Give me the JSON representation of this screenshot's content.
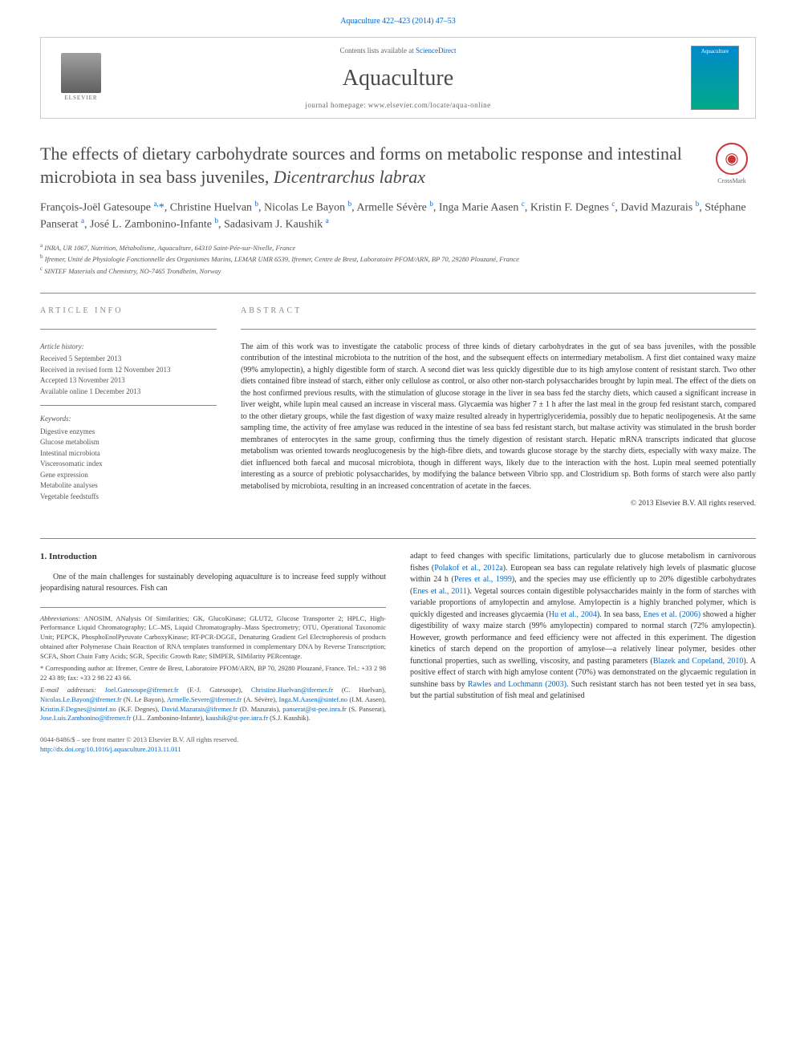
{
  "top_citation": "Aquaculture 422–423 (2014) 47–53",
  "header": {
    "contents_prefix": "Contents lists available at ",
    "contents_link": "ScienceDirect",
    "journal": "Aquaculture",
    "homepage_prefix": "journal homepage: ",
    "homepage": "www.elsevier.com/locate/aqua-online",
    "publisher": "ELSEVIER",
    "cover_label": "Aquaculture"
  },
  "crossmark": "CrossMark",
  "title": {
    "main": "The effects of dietary carbohydrate sources and forms on metabolic response and intestinal microbiota in sea bass juveniles, ",
    "species": "Dicentrarchus labrax"
  },
  "authors_html": "François-Joël Gatesoupe <sup>a,</sup><span class='star'>*</span>, Christine Huelvan <sup>b</sup>, Nicolas Le Bayon <sup>b</sup>, Armelle Sévère <sup>b</sup>, Inga Marie Aasen <sup>c</sup>, Kristin F. Degnes <sup>c</sup>, David Mazurais <sup>b</sup>, Stéphane Panserat <sup>a</sup>, José L. Zambonino-Infante <sup>b</sup>, Sadasivam J. Kaushik <sup>a</sup>",
  "affiliations": [
    {
      "sup": "a",
      "text": "INRA, UR 1067, Nutrition, Métabolisme, Aquaculture, 64310 Saint-Pée-sur-Nivelle, France"
    },
    {
      "sup": "b",
      "text": "Ifremer, Unité de Physiologie Fonctionnelle des Organismes Marins, LEMAR UMR 6539, Ifremer, Centre de Brest, Laboratoire PFOM/ARN, BP 70, 29280 Plouzané, France"
    },
    {
      "sup": "c",
      "text": "SINTEF Materials and Chemistry, NO-7465 Trondheim, Norway"
    }
  ],
  "article_info": {
    "header": "ARTICLE INFO",
    "history_title": "Article history:",
    "history": [
      "Received 5 September 2013",
      "Received in revised form 12 November 2013",
      "Accepted 13 November 2013",
      "Available online 1 December 2013"
    ],
    "keywords_title": "Keywords:",
    "keywords": [
      "Digestive enzymes",
      "Glucose metabolism",
      "Intestinal microbiota",
      "Viscerosomatic index",
      "Gene expression",
      "Metabolite analyses",
      "Vegetable feedstuffs"
    ]
  },
  "abstract": {
    "header": "ABSTRACT",
    "text": "The aim of this work was to investigate the catabolic process of three kinds of dietary carbohydrates in the gut of sea bass juveniles, with the possible contribution of the intestinal microbiota to the nutrition of the host, and the subsequent effects on intermediary metabolism. A first diet contained waxy maize (99% amylopectin), a highly digestible form of starch. A second diet was less quickly digestible due to its high amylose content of resistant starch. Two other diets contained fibre instead of starch, either only cellulose as control, or also other non-starch polysaccharides brought by lupin meal. The effect of the diets on the host confirmed previous results, with the stimulation of glucose storage in the liver in sea bass fed the starchy diets, which caused a significant increase in liver weight, while lupin meal caused an increase in visceral mass. Glycaemia was higher 7 ± 1 h after the last meal in the group fed resistant starch, compared to the other dietary groups, while the fast digestion of waxy maize resulted already in hypertriglyceridemia, possibly due to hepatic neolipogenesis. At the same sampling time, the activity of free amylase was reduced in the intestine of sea bass fed resistant starch, but maltase activity was stimulated in the brush border membranes of enterocytes in the same group, confirming thus the timely digestion of resistant starch. Hepatic mRNA transcripts indicated that glucose metabolism was oriented towards neoglucogenesis by the high-fibre diets, and towards glucose storage by the starchy diets, especially with waxy maize. The diet influenced both faecal and mucosal microbiota, though in different ways, likely due to the interaction with the host. Lupin meal seemed potentially interesting as a source of prebiotic polysaccharides, by modifying the balance between Vibrio spp. and Clostridium sp. Both forms of starch were also partly metabolised by microbiota, resulting in an increased concentration of acetate in the faeces.",
    "copyright": "© 2013 Elsevier B.V. All rights reserved."
  },
  "section1": {
    "title": "1. Introduction",
    "col1_p1": "One of the main challenges for sustainably developing aquaculture is to increase feed supply without jeopardising natural resources. Fish can",
    "col2_p1_pre": "adapt to feed changes with specific limitations, particularly due to glucose metabolism in carnivorous fishes (",
    "col2_link1": "Polakof et al., 2012a",
    "col2_p1_mid1": "). European sea bass can regulate relatively high levels of plasmatic glucose within 24 h (",
    "col2_link2": "Peres et al., 1999",
    "col2_p1_mid2": "), and the species may use efficiently up to 20% digestible carbohydrates (",
    "col2_link3": "Enes et al., 2011",
    "col2_p1_mid3": "). Vegetal sources contain digestible polysaccharides mainly in the form of starches with variable proportions of amylopectin and amylose. Amylopectin is a highly branched polymer, which is quickly digested and increases glycaemia (",
    "col2_link4": "Hu et al., 2004",
    "col2_p1_mid4": "). In sea bass, ",
    "col2_link5": "Enes et al. (2006)",
    "col2_p1_mid5": " showed a higher digestibility of waxy maize starch (99% amylopectin) compared to normal starch (72% amylopectin). However, growth performance and feed efficiency were not affected in this experiment. The digestion kinetics of starch depend on the proportion of amylose—a relatively linear polymer, besides other functional properties, such as swelling, viscosity, and pasting parameters (",
    "col2_link6": "Blazek and Copeland, 2010",
    "col2_p1_mid6": "). A positive effect of starch with high amylose content (70%) was demonstrated on the glycaemic regulation in sunshine bass by ",
    "col2_link7": "Rawles and Lochmann (2003)",
    "col2_p1_end": ". Such resistant starch has not been tested yet in sea bass, but the partial substitution of fish meal and gelatinised"
  },
  "footnotes": {
    "abbrev_label": "Abbreviations:",
    "abbrev_text": " ANOSIM, ANalysis Of Similarities; GK, GlucoKinase; GLUT2, Glucose Transporter 2; HPLC, High-Performance Liquid Chromatography; LC–MS, Liquid Chromatography–Mass Spectrometry; OTU, Operational Taxonomic Unit; PEPCK, PhosphoEnolPyruvate CarboxyKinase; RT-PCR-DGGE, Denaturing Gradient Gel Electrophoresis of products obtained after Polymerase Chain Reaction of RNA templates transformed in complementary DNA by Reverse Transcription; SCFA, Short Chain Fatty Acids; SGR, Specific Growth Rate; SIMPER, SIMilarity PERcentage.",
    "corr_label": "*",
    "corr_text": " Corresponding author at: Ifremer, Centre de Brest, Laboratoire PFOM/ARN, BP 70, 29280 Plouzané, France. Tel.: +33 2 98 22 43 89; fax: +33 2 98 22 43 66.",
    "email_label": "E-mail addresses:",
    "emails": [
      {
        "addr": "Joel.Gatesoupe@ifremer.fr",
        "who": " (F.-J. Gatesoupe),"
      },
      {
        "addr": "Christine.Huelvan@ifremer.fr",
        "who": " (C. Huelvan), "
      },
      {
        "addr": "Nicolas.Le.Bayon@ifremer.fr",
        "who": " (N. Le Bayon),"
      },
      {
        "addr": "Armelle.Severe@ifremer.fr",
        "who": " (A. Sévère), "
      },
      {
        "addr": "Inga.M.Aasen@sintef.no",
        "who": " (I.M. Aasen),"
      },
      {
        "addr": "Kristin.F.Degnes@sintef.no",
        "who": " (K.F. Degnes), "
      },
      {
        "addr": "David.Mazurais@ifremer.fr",
        "who": " (D. Mazurais),"
      },
      {
        "addr": "panserat@st-pee.inra.fr",
        "who": " (S. Panserat), "
      },
      {
        "addr": "Jose.Luis.Zambonino@ifremer.fr",
        "who": " (J.L. Zambonino-Infante), "
      },
      {
        "addr": "kaushik@st-pee.inra.fr",
        "who": " (S.J. Kaushik)."
      }
    ]
  },
  "bottom": {
    "issn": "0044-8486/$ – see front matter © 2013 Elsevier B.V. All rights reserved.",
    "doi": "http://dx.doi.org/10.1016/j.aquaculture.2013.11.011"
  },
  "colors": {
    "link": "#0066cc",
    "text": "#333333",
    "muted": "#888888",
    "border": "#cccccc"
  }
}
